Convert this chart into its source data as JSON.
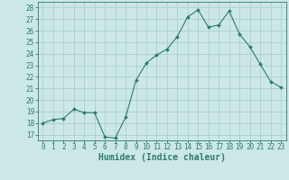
{
  "x": [
    0,
    1,
    2,
    3,
    4,
    5,
    6,
    7,
    8,
    9,
    10,
    11,
    12,
    13,
    14,
    15,
    16,
    17,
    18,
    19,
    20,
    21,
    22,
    23
  ],
  "y": [
    18.0,
    18.3,
    18.4,
    19.2,
    18.9,
    18.9,
    16.8,
    16.7,
    18.5,
    21.7,
    23.2,
    23.9,
    24.4,
    25.5,
    27.2,
    27.8,
    26.3,
    26.5,
    27.7,
    25.7,
    24.6,
    23.1,
    21.6,
    21.1
  ],
  "line_color": "#2d7a6e",
  "marker": "D",
  "marker_size": 2.0,
  "bg_color": "#cce8e6",
  "grid_color": "#aacfcd",
  "tick_color": "#2d7a6e",
  "xlabel": "Humidex (Indice chaleur)",
  "xlabel_fontsize": 7,
  "tick_fontsize": 5.5,
  "ylabel_ticks": [
    17,
    18,
    19,
    20,
    21,
    22,
    23,
    24,
    25,
    26,
    27,
    28
  ],
  "xlim": [
    -0.5,
    23.5
  ],
  "ylim": [
    16.5,
    28.5
  ]
}
